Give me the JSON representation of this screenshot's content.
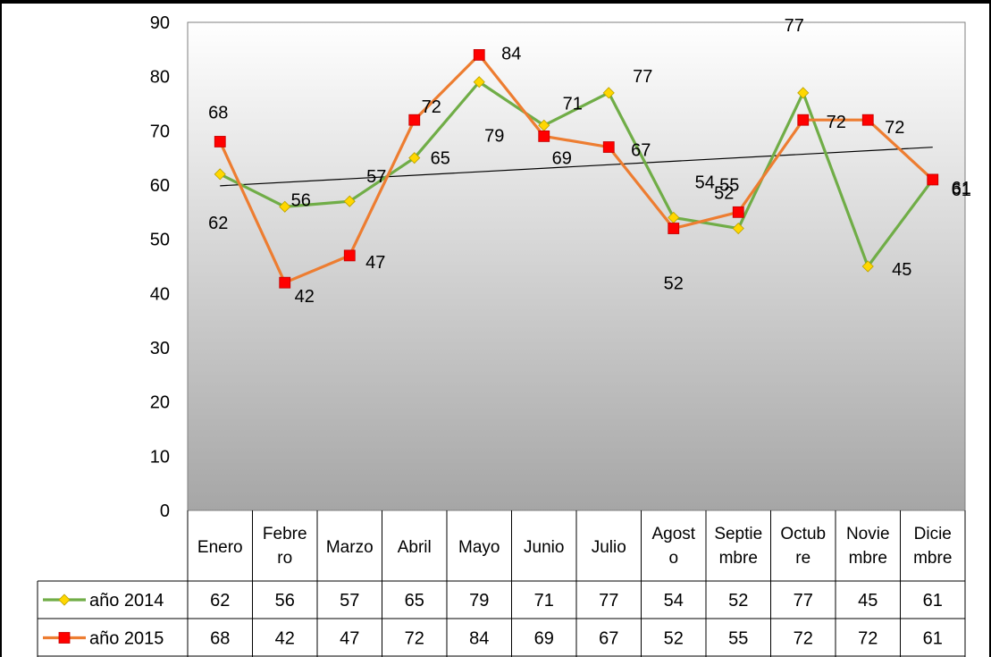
{
  "chart_data": {
    "type": "line",
    "categories": [
      [
        "Enero"
      ],
      [
        "Febre",
        "ro"
      ],
      [
        "Marzo"
      ],
      [
        "Abril"
      ],
      [
        "Mayo"
      ],
      [
        "Junio"
      ],
      [
        "Julio"
      ],
      [
        "Agost",
        "o"
      ],
      [
        "Septie",
        "mbre"
      ],
      [
        "Octub",
        "re"
      ],
      [
        "Novie",
        "mbre"
      ],
      [
        "Dicie",
        "mbre"
      ]
    ],
    "ylim": [
      0,
      90
    ],
    "yticks": [
      0,
      10,
      20,
      30,
      40,
      50,
      60,
      70,
      80,
      90
    ],
    "grid": false,
    "data_table": true,
    "trendline": {
      "series": "año 2015",
      "type": "linear"
    },
    "series": [
      {
        "name": "año 2014",
        "color": "#70ad47",
        "marker": "diamond",
        "marker_color": "#ffd700",
        "values": [
          62,
          56,
          57,
          65,
          79,
          71,
          77,
          54,
          52,
          77,
          45,
          61
        ]
      },
      {
        "name": "año 2015",
        "color": "#ed7d31",
        "marker": "square",
        "marker_color": "#ff0000",
        "values": [
          68,
          42,
          47,
          72,
          84,
          69,
          67,
          52,
          55,
          72,
          72,
          61
        ]
      }
    ],
    "title": "",
    "xlabel": "",
    "ylabel": ""
  },
  "colors": {
    "plot_top": "#ffffff",
    "plot_bottom": "#a6a6a6",
    "trendline": "#000000"
  }
}
